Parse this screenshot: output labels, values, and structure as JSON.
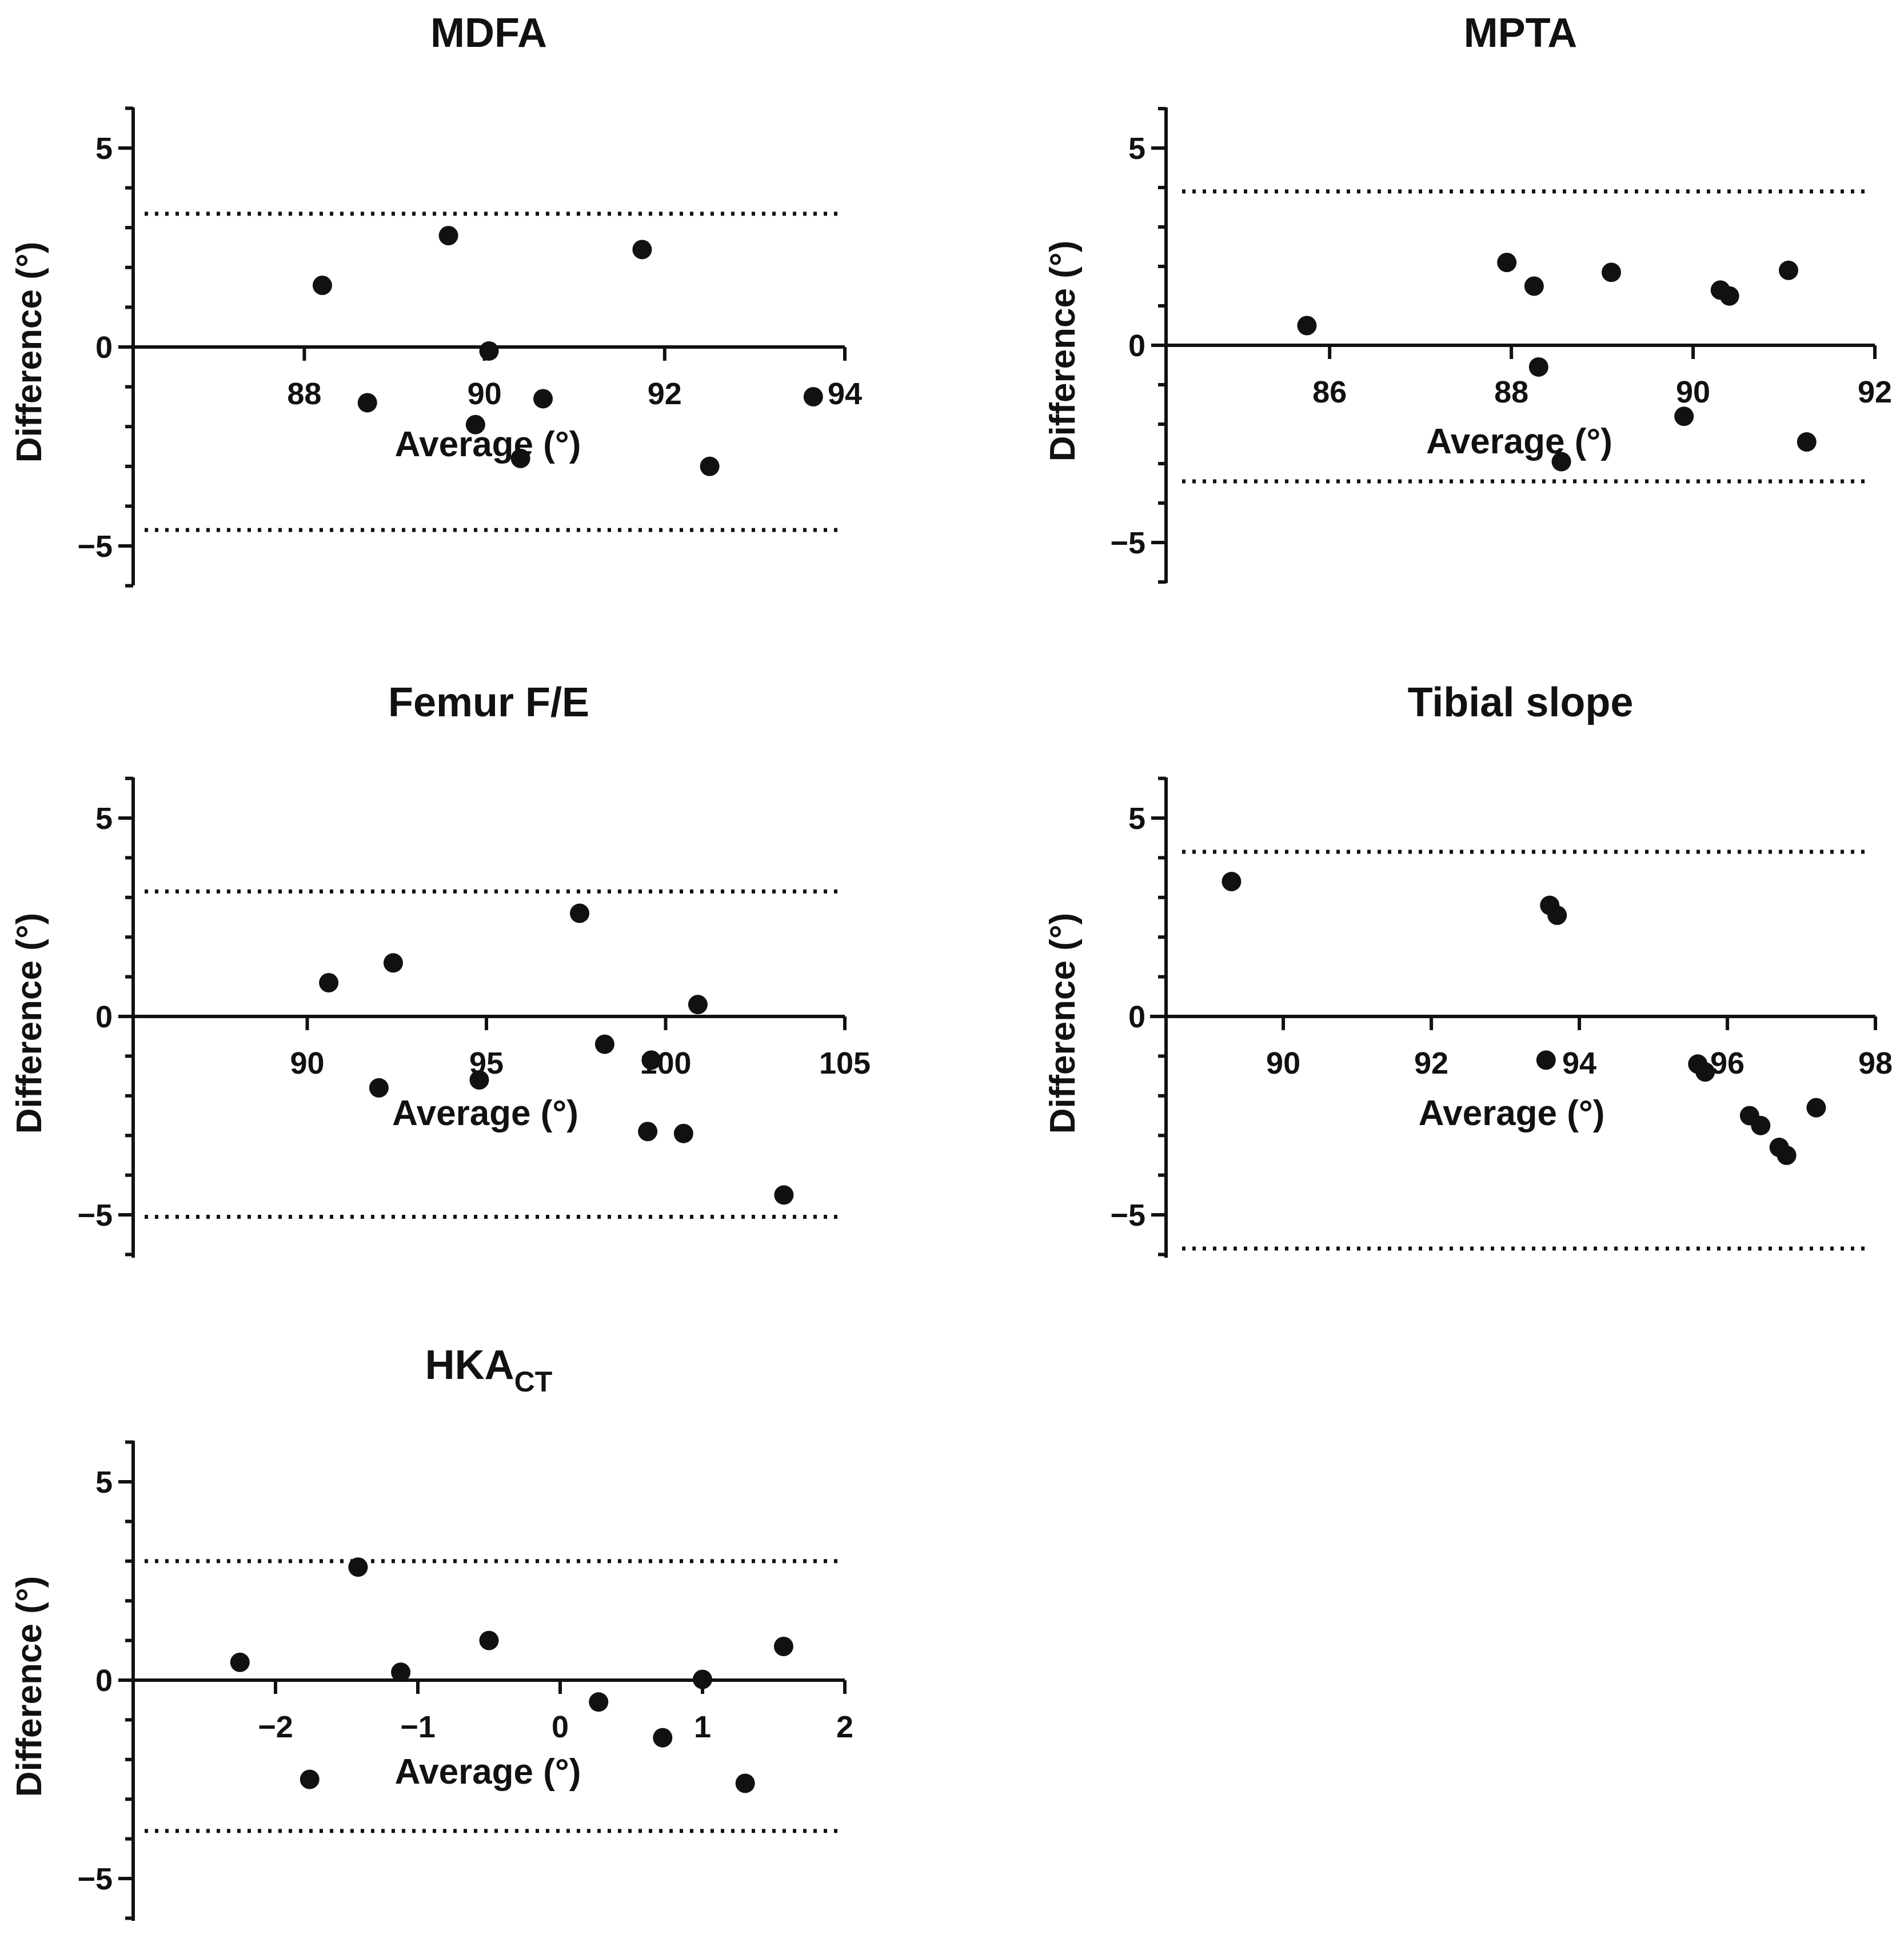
{
  "chart_data": [
    {
      "type": "scatter",
      "title": "MDFA",
      "xlabel": "Average (°)",
      "ylabel": "Difference (°)",
      "xlim": [
        86.1,
        94.0
      ],
      "ylim": [
        -6,
        6
      ],
      "xticks": [
        {
          "value": 88,
          "label": "88"
        },
        {
          "value": 90,
          "label": "90"
        },
        {
          "value": 92,
          "label": "92"
        },
        {
          "value": 94,
          "label": "94"
        }
      ],
      "yticks": [
        {
          "value": 5,
          "label": "5"
        },
        {
          "value": 0,
          "label": "0"
        },
        {
          "value": -5,
          "label": "−5"
        }
      ],
      "limits": [
        3.35,
        -4.6
      ],
      "points": [
        {
          "x": 88.2,
          "y": 1.55
        },
        {
          "x": 88.7,
          "y": -1.4
        },
        {
          "x": 89.6,
          "y": 2.8
        },
        {
          "x": 89.9,
          "y": -1.95
        },
        {
          "x": 90.05,
          "y": -0.1
        },
        {
          "x": 90.4,
          "y": -2.8
        },
        {
          "x": 90.65,
          "y": -1.3
        },
        {
          "x": 91.75,
          "y": 2.45
        },
        {
          "x": 92.5,
          "y": -3.0
        },
        {
          "x": 93.65,
          "y": -1.25
        }
      ]
    },
    {
      "type": "scatter",
      "title": "MPTA",
      "xlabel": "Average (°)",
      "ylabel": "Difference (°)",
      "xlim": [
        84.2,
        92.0
      ],
      "ylim": [
        -6,
        6
      ],
      "xticks": [
        {
          "value": 86,
          "label": "86"
        },
        {
          "value": 88,
          "label": "88"
        },
        {
          "value": 90,
          "label": "90"
        },
        {
          "value": 92,
          "label": "92"
        }
      ],
      "yticks": [
        {
          "value": 5,
          "label": "5"
        },
        {
          "value": 0,
          "label": "0"
        },
        {
          "value": -5,
          "label": "−5"
        }
      ],
      "limits": [
        3.9,
        -3.45
      ],
      "points": [
        {
          "x": 85.75,
          "y": 0.5
        },
        {
          "x": 87.95,
          "y": 2.1
        },
        {
          "x": 88.25,
          "y": 1.5
        },
        {
          "x": 88.3,
          "y": -0.55
        },
        {
          "x": 88.55,
          "y": -2.95
        },
        {
          "x": 89.1,
          "y": 1.85
        },
        {
          "x": 89.9,
          "y": -1.8
        },
        {
          "x": 90.3,
          "y": 1.4
        },
        {
          "x": 90.4,
          "y": 1.25
        },
        {
          "x": 91.05,
          "y": 1.9
        },
        {
          "x": 91.25,
          "y": -2.45
        }
      ]
    },
    {
      "type": "scatter",
      "title": "Femur F/E",
      "xlabel": "Average (°)",
      "ylabel": "Difference (°)",
      "xlim": [
        85.0,
        105.0
      ],
      "ylim": [
        -6,
        6
      ],
      "xticks": [
        {
          "value": 90,
          "label": "90"
        },
        {
          "value": 95,
          "label": "95"
        },
        {
          "value": 100,
          "label": "100"
        },
        {
          "value": 105,
          "label": "105"
        }
      ],
      "yticks": [
        {
          "value": 5,
          "label": "5"
        },
        {
          "value": 0,
          "label": "0"
        },
        {
          "value": -5,
          "label": "−5"
        }
      ],
      "limits": [
        3.15,
        -5.05
      ],
      "points": [
        {
          "x": 90.6,
          "y": 0.85
        },
        {
          "x": 92.0,
          "y": -1.8
        },
        {
          "x": 92.4,
          "y": 1.35
        },
        {
          "x": 94.8,
          "y": -1.6
        },
        {
          "x": 97.6,
          "y": 2.6
        },
        {
          "x": 98.3,
          "y": -0.7
        },
        {
          "x": 99.5,
          "y": -2.9
        },
        {
          "x": 99.6,
          "y": -1.1
        },
        {
          "x": 100.5,
          "y": -2.95
        },
        {
          "x": 100.9,
          "y": 0.3
        },
        {
          "x": 103.3,
          "y": -4.5
        }
      ]
    },
    {
      "type": "scatter",
      "title": "Tibial slope",
      "xlabel": "Average (°)",
      "ylabel": "Difference (°)",
      "xlim": [
        88.2,
        98.0
      ],
      "ylim": [
        -6,
        6
      ],
      "xticks": [
        {
          "value": 90,
          "label": "90"
        },
        {
          "value": 92,
          "label": "92"
        },
        {
          "value": 94,
          "label": "94"
        },
        {
          "value": 96,
          "label": "96"
        },
        {
          "value": 98,
          "label": "98"
        }
      ],
      "yticks": [
        {
          "value": 5,
          "label": "5"
        },
        {
          "value": 0,
          "label": "0"
        },
        {
          "value": -5,
          "label": "−5"
        }
      ],
      "limits": [
        4.15,
        -5.85
      ],
      "points": [
        {
          "x": 89.3,
          "y": 3.4
        },
        {
          "x": 93.55,
          "y": -1.1
        },
        {
          "x": 93.6,
          "y": 2.8
        },
        {
          "x": 93.7,
          "y": 2.55
        },
        {
          "x": 95.6,
          "y": -1.2
        },
        {
          "x": 95.7,
          "y": -1.4
        },
        {
          "x": 96.3,
          "y": -2.5
        },
        {
          "x": 96.45,
          "y": -2.75
        },
        {
          "x": 96.7,
          "y": -3.3
        },
        {
          "x": 96.8,
          "y": -3.5
        },
        {
          "x": 97.2,
          "y": -2.3
        }
      ]
    },
    {
      "type": "scatter",
      "title": "HKA",
      "title_sub": "CT",
      "xlabel": "Average (°)",
      "ylabel": "Difference (°)",
      "xlim": [
        -3.0,
        2.0
      ],
      "ylim": [
        -6,
        6
      ],
      "xticks": [
        {
          "value": -2,
          "label": "−2"
        },
        {
          "value": -1,
          "label": "−1"
        },
        {
          "value": 0,
          "label": "0"
        },
        {
          "value": 1,
          "label": "1"
        },
        {
          "value": 2,
          "label": "2"
        }
      ],
      "yticks": [
        {
          "value": 5,
          "label": "5"
        },
        {
          "value": 0,
          "label": "0"
        },
        {
          "value": -5,
          "label": "−5"
        }
      ],
      "limits": [
        3.0,
        -3.8
      ],
      "points": [
        {
          "x": -2.25,
          "y": 0.45
        },
        {
          "x": -1.76,
          "y": -2.5
        },
        {
          "x": -1.42,
          "y": 2.85
        },
        {
          "x": -1.12,
          "y": 0.2
        },
        {
          "x": -0.5,
          "y": 1.0
        },
        {
          "x": 0.27,
          "y": -0.55
        },
        {
          "x": 0.72,
          "y": -1.45
        },
        {
          "x": 1.0,
          "y": 0.02
        },
        {
          "x": 1.3,
          "y": -2.6
        },
        {
          "x": 1.57,
          "y": 0.85
        }
      ]
    }
  ]
}
